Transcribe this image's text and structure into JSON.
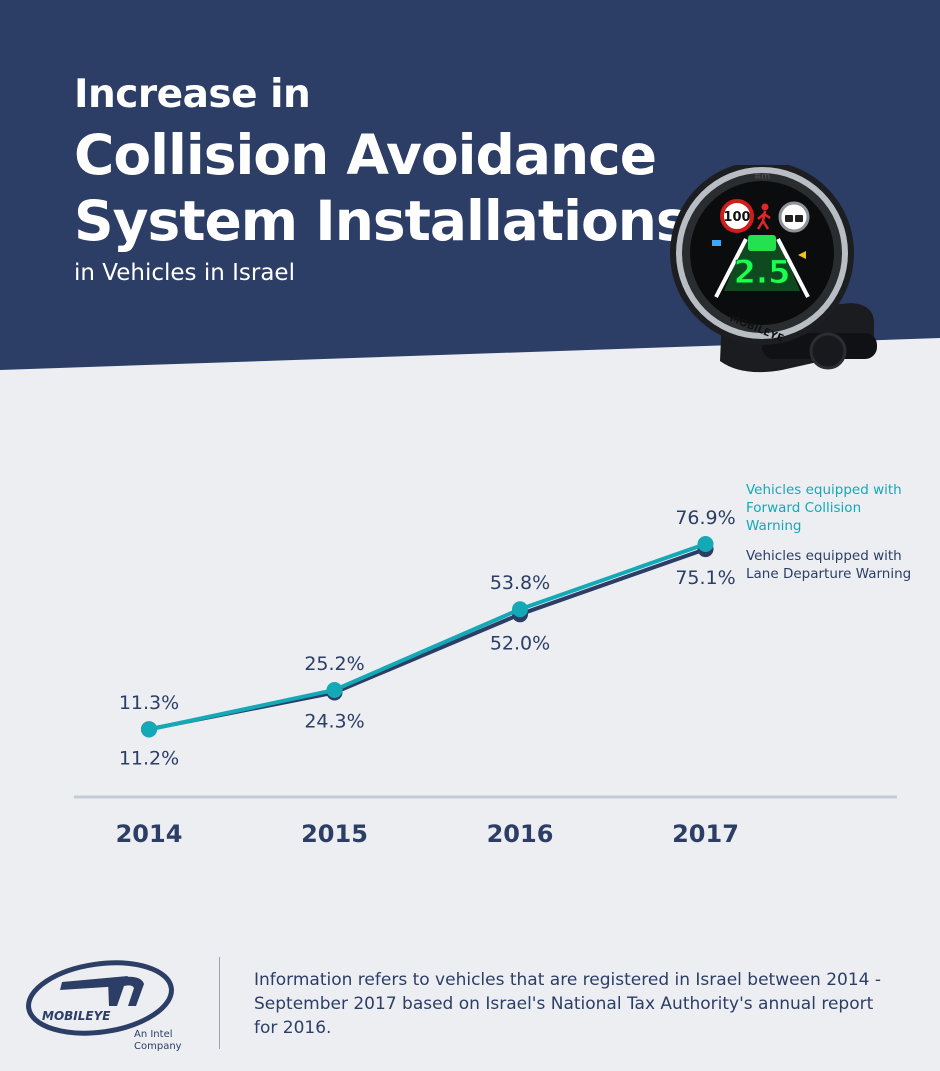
{
  "header": {
    "title_line1": "Increase in",
    "title_line2": "Collision Avoidance",
    "title_line3": "System Installations",
    "subtitle": "in Vehicles in Israel"
  },
  "device": {
    "speed_sign": "100",
    "display_value": "2.5",
    "brand": "MOBILEYE"
  },
  "colors": {
    "header_bg": "#2c3e66",
    "page_bg": "#eceef2",
    "fcw": "#14a9b7",
    "ldw": "#2c3e66",
    "axis": "#c4ccd8"
  },
  "chart_data": {
    "type": "line",
    "categories": [
      "2014",
      "2015",
      "2016",
      "2017"
    ],
    "series": [
      {
        "name": "Vehicles equipped with Forward Collision Warning",
        "values": [
          11.2,
          25.2,
          53.8,
          76.9
        ],
        "labels": [
          "11.2%",
          "25.2%",
          "53.8%",
          "76.9%"
        ]
      },
      {
        "name": "Vehicles equipped with Lane Departure Warning",
        "values": [
          11.3,
          24.3,
          52.0,
          75.1
        ],
        "labels": [
          "11.3%",
          "24.3%",
          "52.0%",
          "75.1%"
        ]
      }
    ],
    "unit": "%",
    "legend_placement": "right"
  },
  "footer": {
    "logo_text": "MOBILEYE",
    "logo_tagline_line1": "An Intel",
    "logo_tagline_line2": "Company",
    "note": "Information refers to vehicles that are registered in Israel between 2014 - September 2017 based on Israel's National Tax Authority's annual report for 2016."
  }
}
